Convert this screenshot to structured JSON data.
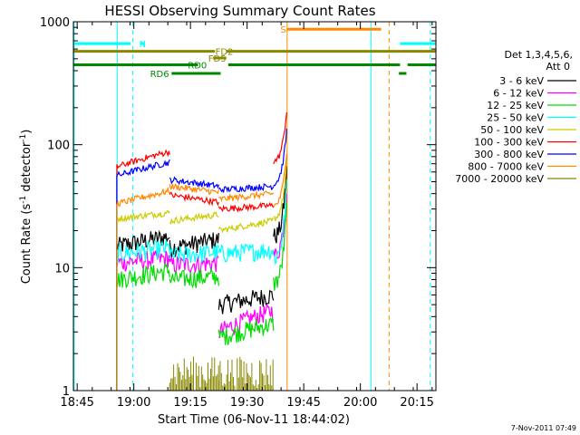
{
  "chart_data": {
    "type": "line",
    "title": "HESSI Observing Summary Count Rates",
    "xlabel": "Start Time (06-Nov-11 18:44:02)",
    "ylabel_main": "Count Rate (s",
    "ylabel_sup1": "-1",
    "ylabel_mid": " detector",
    "ylabel_sup2": "-1",
    "ylabel_end": ")",
    "x_unit": "minutes after 18:44:02",
    "x_range": [
      0,
      96
    ],
    "y_scale": "log",
    "y_range": [
      1,
      1000
    ],
    "x_ticks": [
      {
        "v": 1,
        "label": "18:45"
      },
      {
        "v": 16,
        "label": "19:00"
      },
      {
        "v": 31,
        "label": "19:15"
      },
      {
        "v": 46,
        "label": "19:30"
      },
      {
        "v": 61,
        "label": "19:45"
      },
      {
        "v": 76,
        "label": "20:00"
      },
      {
        "v": 91,
        "label": "20:15"
      }
    ],
    "y_ticks": [
      {
        "v": 1,
        "label": "1"
      },
      {
        "v": 10,
        "label": "10"
      },
      {
        "v": 100,
        "label": "100"
      },
      {
        "v": 1000,
        "label": "1000"
      }
    ],
    "legend_header": [
      "Det 1,3,4,5,6,",
      "Att 0"
    ],
    "legend_placement": "right",
    "segments": [
      {
        "t0": 11.5,
        "t1": 25.5
      },
      {
        "t0": 25.5,
        "t1": 38.5
      },
      {
        "t0": 38.5,
        "t1": 53
      },
      {
        "t0": 53,
        "t1": 56.5
      }
    ],
    "series": [
      {
        "name": "3 - 6 keV",
        "color": "#000000",
        "values": [
          15,
          18,
          14.5,
          17,
          5,
          6,
          18,
          19
        ],
        "final": 60
      },
      {
        "name": "6 - 12 keV",
        "color": "#ff00ff",
        "values": [
          11,
          12,
          10.5,
          11,
          3,
          4.5,
          12.5,
          13.5
        ],
        "final": 45
      },
      {
        "name": "12 - 25 keV",
        "color": "#00dd00",
        "values": [
          8,
          9.5,
          8,
          8.5,
          2.7,
          3.5,
          7.5,
          8
        ],
        "final": 30
      },
      {
        "name": "25 - 50 keV",
        "color": "#00ffff",
        "values": [
          13,
          14.5,
          12.5,
          13.5,
          13,
          14,
          12,
          13
        ],
        "final": 45
      },
      {
        "name": "50 - 100 keV",
        "color": "#cccc00",
        "values": [
          25,
          28,
          24,
          27,
          20,
          24,
          25,
          27
        ],
        "final": 70
      },
      {
        "name": "100 - 300 keV",
        "color": "#ff0000",
        "values": [
          66,
          88,
          39,
          34,
          30,
          32,
          73,
          80
        ],
        "final": 190
      },
      {
        "name": "300 - 800 keV",
        "color": "#0000ff",
        "values": [
          56,
          72,
          52,
          46,
          43,
          46,
          48,
          54
        ],
        "final": 130
      },
      {
        "name": "800 - 7000 keV",
        "color": "#ff8800",
        "values": [
          33,
          42,
          46,
          41,
          36,
          40,
          32,
          34
        ],
        "final": 90
      },
      {
        "name": "7000 - 20000 keV",
        "color": "#888800",
        "values": [
          null,
          null,
          1.6,
          1.7,
          1.5,
          1.6,
          null,
          null
        ],
        "final": null
      }
    ],
    "flags": [
      {
        "label": "N",
        "color": "#00ffff",
        "y": 664,
        "ranges": [
          [
            0,
            15.2
          ],
          [
            17.8,
            17.8
          ]
        ],
        "label_x": 17.4
      },
      {
        "label": "N",
        "color": "#00ffff",
        "y": 664,
        "ranges": [
          [
            86.5,
            96
          ]
        ],
        "label_x": null
      },
      {
        "label": "S",
        "color": "#ff8800",
        "y": 870,
        "ranges": [
          [
            56.5,
            81.5
          ]
        ],
        "label_x": 54.8
      },
      {
        "label": "FD2",
        "color": "#888800",
        "y": 575,
        "ranges": [
          [
            0,
            37.5
          ],
          [
            40.5,
            96
          ]
        ],
        "label_x": 37.6
      },
      {
        "label": "FD5",
        "color": "#888800",
        "y": 507,
        "ranges": [
          [
            37,
            40.5
          ]
        ],
        "label_x": 35.7
      },
      {
        "label": "RD0",
        "color": "#008800",
        "y": 447,
        "ranges": [
          [
            0,
            33
          ],
          [
            41,
            86.5
          ],
          [
            88.5,
            96
          ]
        ],
        "label_x": 30.3
      },
      {
        "label": "RD6",
        "color": "#008800",
        "y": 380,
        "ranges": [
          [
            26,
            39
          ],
          [
            86.2,
            88.2
          ]
        ],
        "label_x": 20.3
      }
    ],
    "vlines_solid": [
      {
        "x": 0.2,
        "color": "#00ffff"
      },
      {
        "x": 11.6,
        "color": "#00ffff"
      },
      {
        "x": 56.6,
        "color": "#ff8800"
      },
      {
        "x": 78.8,
        "color": "#00ffff"
      }
    ],
    "vlines_dashed": [
      {
        "x": 15.7,
        "color": "#00ffff"
      },
      {
        "x": 83.6,
        "color": "#ff8800"
      },
      {
        "x": 94.5,
        "color": "#00ffff"
      }
    ]
  },
  "footer_timestamp": "7-Nov-2011 07:49"
}
